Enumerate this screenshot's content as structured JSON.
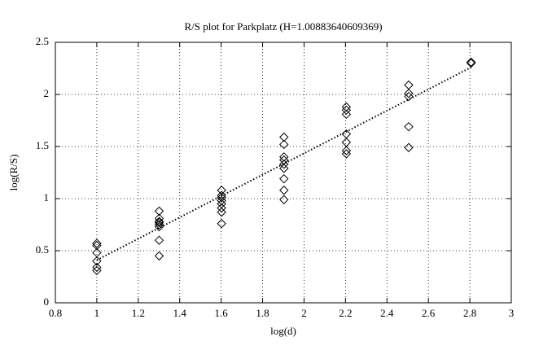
{
  "chart_data": {
    "type": "scatter",
    "title": "R/S plot for Parkplatz (H=1.00883640609369)",
    "xlabel": "log(d)",
    "ylabel": "log(R/S)",
    "xlim": [
      0.8,
      3
    ],
    "ylim": [
      0,
      2.5
    ],
    "xticks": [
      0.8,
      1,
      1.2,
      1.4,
      1.6,
      1.8,
      2,
      2.2,
      2.4,
      2.6,
      2.8,
      3
    ],
    "yticks": [
      0,
      0.5,
      1,
      1.5,
      2,
      2.5
    ],
    "grid": true,
    "series": [
      {
        "type": "scatter",
        "marker": "diamond",
        "color": "#000000",
        "x": [
          1,
          1,
          1,
          1,
          1,
          1,
          1.301,
          1.301,
          1.301,
          1.301,
          1.301,
          1.301,
          1.301,
          1.301,
          1.602,
          1.602,
          1.602,
          1.602,
          1.602,
          1.602,
          1.602,
          1.602,
          1.903,
          1.903,
          1.903,
          1.903,
          1.903,
          1.903,
          1.903,
          1.903,
          1.903,
          2.204,
          2.204,
          2.204,
          2.204,
          2.204,
          2.204,
          2.204,
          2.505,
          2.505,
          2.505,
          2.505,
          2.505,
          2.806,
          2.806
        ],
        "values": [
          0.57,
          0.55,
          0.48,
          0.4,
          0.34,
          0.31,
          0.88,
          0.81,
          0.78,
          0.77,
          0.75,
          0.73,
          0.6,
          0.45,
          1.08,
          1.03,
          1.01,
          0.98,
          0.95,
          0.91,
          0.87,
          0.76,
          1.59,
          1.52,
          1.4,
          1.37,
          1.33,
          1.29,
          1.19,
          1.08,
          0.99,
          1.88,
          1.85,
          1.81,
          1.62,
          1.54,
          1.46,
          1.43,
          2.09,
          2.01,
          1.98,
          1.69,
          1.49,
          2.31,
          2.3
        ]
      },
      {
        "type": "line",
        "style": "dotted",
        "color": "#000000",
        "x": [
          1,
          2.806
        ],
        "values": [
          0.41,
          2.26
        ]
      }
    ]
  }
}
